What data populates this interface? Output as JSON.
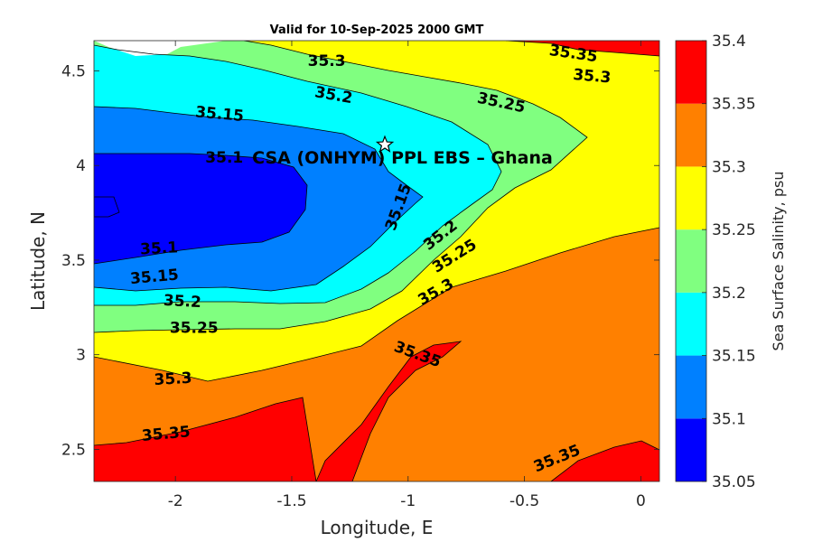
{
  "chart_data": {
    "type": "contour",
    "title": "Valid for 10-Sep-2025 2000 GMT",
    "xlabel": "Longitude, E",
    "ylabel": "Latitude, N",
    "xlim": [
      -2.35,
      0.08
    ],
    "ylim": [
      2.33,
      4.66
    ],
    "x_ticks": [
      -2,
      -1.5,
      -1,
      -0.5,
      0
    ],
    "x_tick_labels": [
      "-2",
      "-1.5",
      "-1",
      "-0.5",
      "0"
    ],
    "y_ticks": [
      2.5,
      3,
      3.5,
      4,
      4.5
    ],
    "y_tick_labels": [
      "2.5",
      "3",
      "3.5",
      "4",
      "4.5"
    ],
    "colorbar": {
      "label": "Sea Surface Salinity, psu",
      "levels": [
        35.05,
        35.1,
        35.15,
        35.2,
        35.25,
        35.3,
        35.35,
        35.4
      ],
      "tick_labels": [
        "35.05",
        "35.1",
        "35.15",
        "35.2",
        "35.25",
        "35.3",
        "35.35",
        "35.4"
      ],
      "colors": [
        "#0000ff",
        "#0080ff",
        "#00ffff",
        "#80ff80",
        "#ffff00",
        "#ff8000",
        "#ff0000"
      ]
    },
    "contour_labels": [
      {
        "text": "35.35",
        "lon": -0.29,
        "lat": 4.59
      },
      {
        "text": "35.3",
        "lon": -1.35,
        "lat": 4.55
      },
      {
        "text": "35.3",
        "lon": -0.21,
        "lat": 4.47
      },
      {
        "text": "35.2",
        "lon": -1.32,
        "lat": 4.37
      },
      {
        "text": "35.25",
        "lon": -0.6,
        "lat": 4.33
      },
      {
        "text": "35.15",
        "lon": -1.81,
        "lat": 4.27
      },
      {
        "text": "35.1",
        "lon": -1.79,
        "lat": 4.04
      },
      {
        "text": "35.15",
        "lon": -1.04,
        "lat": 3.78
      },
      {
        "text": "35.2",
        "lon": -0.86,
        "lat": 3.63
      },
      {
        "text": "35.25",
        "lon": -0.8,
        "lat": 3.52
      },
      {
        "text": "35.3",
        "lon": -0.88,
        "lat": 3.33
      },
      {
        "text": "35.1",
        "lon": -2.07,
        "lat": 3.56
      },
      {
        "text": "35.15",
        "lon": -2.09,
        "lat": 3.41
      },
      {
        "text": "35.2",
        "lon": -1.97,
        "lat": 3.28
      },
      {
        "text": "35.25",
        "lon": -1.92,
        "lat": 3.14
      },
      {
        "text": "35.3",
        "lon": -2.01,
        "lat": 2.87
      },
      {
        "text": "35.35",
        "lon": -2.04,
        "lat": 2.58
      },
      {
        "text": "35.35",
        "lon": -0.96,
        "lat": 3.0
      },
      {
        "text": "35.35",
        "lon": -0.36,
        "lat": 2.45
      }
    ],
    "marker": {
      "symbol": "star",
      "lon": -1.1,
      "lat": 4.11
    },
    "annotation": {
      "text": "CSA (ONHYM) PPL EBS  – Ghana",
      "lon": -1.67,
      "lat": 4.04
    }
  }
}
